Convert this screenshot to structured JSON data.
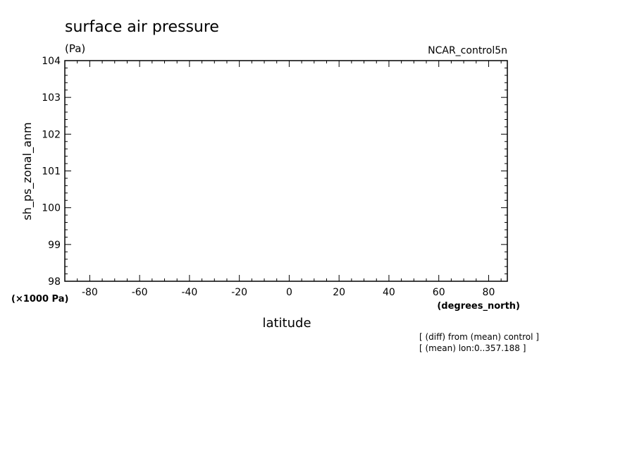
{
  "chart_data": {
    "type": "line",
    "title": "surface air pressure",
    "units_label": "(Pa)",
    "dataset_label": "NCAR_control5n",
    "ylabel": "sh_ps_zonal_anm",
    "yunits": "(×1000 Pa)",
    "xlabel": "latitude",
    "xunits": "(degrees_north)",
    "xlim": [
      -90,
      87.5
    ],
    "ylim": [
      98,
      104
    ],
    "xticks": [
      -80,
      -60,
      -40,
      -20,
      0,
      20,
      40,
      60,
      80
    ],
    "xtick_labels": [
      "-80",
      "-60",
      "-40",
      "-20",
      "0",
      "20",
      "40",
      "60",
      "80"
    ],
    "yticks": [
      98,
      99,
      100,
      101,
      102,
      103,
      104
    ],
    "ytick_labels": [
      "98",
      "99",
      "100",
      "101",
      "102",
      "103",
      "104"
    ],
    "series": [],
    "grid": false,
    "annotations": [
      "[ (diff) from (mean) control ]",
      "[ (mean) lon:0..357.188 ]"
    ]
  }
}
